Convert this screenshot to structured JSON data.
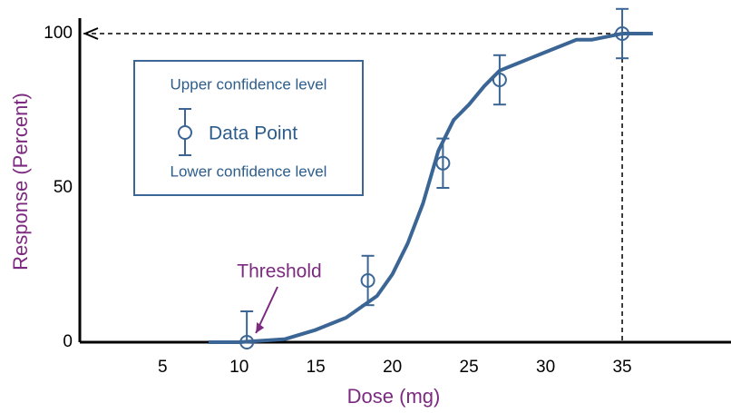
{
  "chart_data": {
    "type": "line",
    "x_label": "Dose (mg)",
    "y_label": "Response (Percent)",
    "annotation": "Threshold",
    "xlim": [
      -0.4,
      42.1
    ],
    "xticks": [
      5,
      10,
      15,
      20,
      25,
      30,
      35
    ],
    "ylim": [
      0,
      105
    ],
    "yticks": [
      0,
      50,
      100
    ],
    "legend": {
      "upper": "Upper confidence level",
      "lower": "Lower confidence level"
    },
    "curve": {
      "color": "#3a6595",
      "x": [
        8,
        10,
        13,
        15,
        17,
        19,
        20,
        21,
        22,
        23,
        24,
        25,
        26,
        27,
        28,
        29,
        30,
        31,
        32,
        33,
        34,
        35,
        37
      ],
      "values": [
        0,
        0,
        1,
        4,
        8,
        15,
        22,
        32,
        45,
        62,
        72,
        77,
        83,
        88,
        90,
        92,
        94,
        96,
        98,
        98,
        99,
        100,
        100
      ]
    },
    "series": [
      {
        "name": "Data Point",
        "color": "#3a6595",
        "x": [
          10.5,
          18.4,
          23.3,
          27,
          35
        ],
        "values": [
          0,
          20,
          58,
          85,
          100
        ],
        "errors": [
          10,
          8,
          8,
          8,
          8
        ]
      }
    ]
  }
}
